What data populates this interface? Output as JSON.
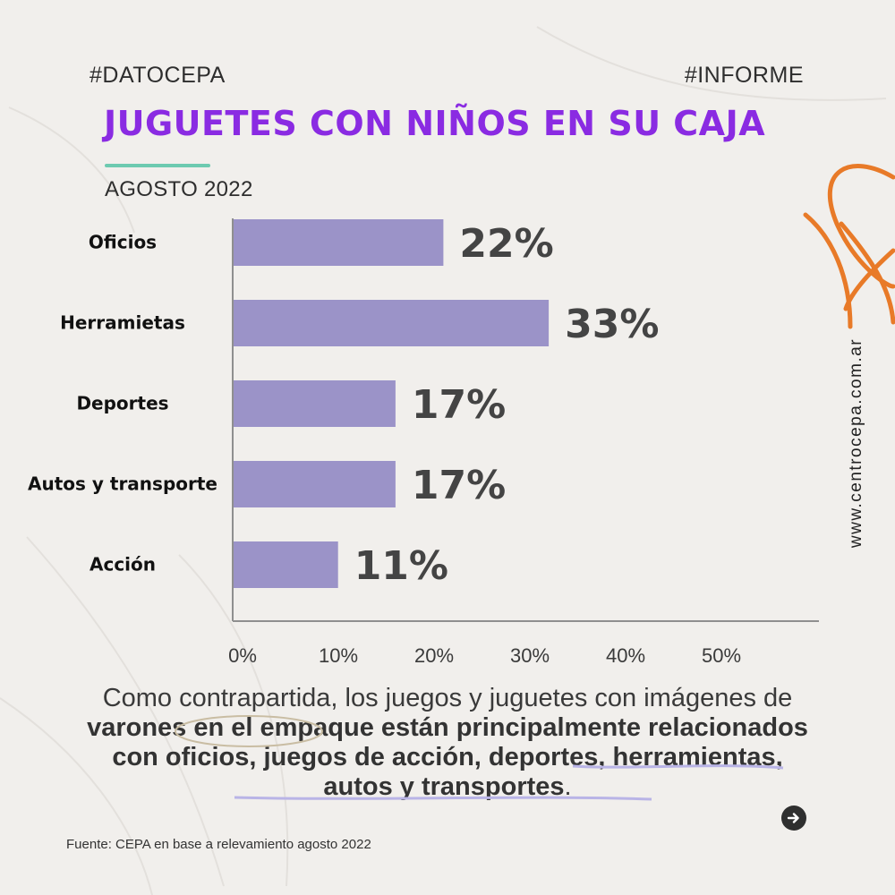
{
  "header": {
    "tag_left": "#DATOCEPA",
    "tag_right": "#INFORME"
  },
  "chart_data": {
    "type": "bar",
    "orientation": "horizontal",
    "title": "JUGUETES CON NIÑOS EN SU CAJA",
    "subtitle": "AGOSTO 2022",
    "categories": [
      "Oficios",
      "Herramietas",
      "Deportes",
      "Autos y transporte",
      "Acción"
    ],
    "values": [
      22,
      33,
      17,
      17,
      11
    ],
    "value_labels": [
      "22%",
      "33%",
      "17%",
      "17%",
      "11%"
    ],
    "xlim": [
      0,
      50
    ],
    "xticks": [
      "0%",
      "10%",
      "20%",
      "30%",
      "40%",
      "50%"
    ],
    "grid": false,
    "bar_color": "#9b93c8"
  },
  "body": {
    "text_before": "Como contrapartida, los juegos y juguetes con imágenes de ",
    "text_bold": "varones en el empaque están principalmente relacionados con oficios, juegos de acción, deportes, herramientas, autos y transportes",
    "text_after": "."
  },
  "side": {
    "website": "www.centrocepa.com.ar"
  },
  "footer": {
    "source": "Fuente: CEPA en base a relevamiento agosto 2022"
  },
  "nav": {
    "next_icon": "arrow-right-icon"
  },
  "colors": {
    "title": "#8a2be2",
    "accent_line": "#6dcab0",
    "decoration": "#e87a28",
    "highlight": "#b9b4e6"
  }
}
